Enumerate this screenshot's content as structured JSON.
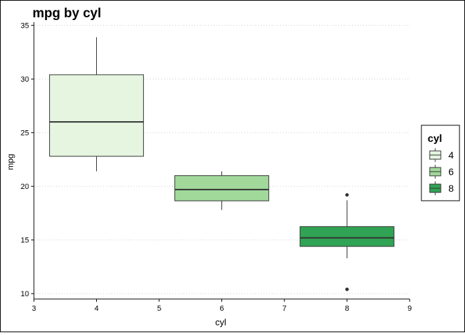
{
  "chart_data": {
    "type": "boxplot",
    "title": "mpg by cyl",
    "xlabel": "cyl",
    "ylabel": "mpg",
    "xlim": [
      3,
      9
    ],
    "ylim": [
      9.5,
      35.3
    ],
    "x_ticks": [
      3,
      4,
      5,
      6,
      7,
      8,
      9
    ],
    "y_ticks": [
      10,
      15,
      20,
      25,
      30,
      35
    ],
    "grid": "horizontal dotted at y ticks",
    "legend": {
      "title": "cyl",
      "position": "right",
      "entries": [
        "4",
        "6",
        "8"
      ]
    },
    "boxes": [
      {
        "group": "4",
        "x": 4,
        "min": 21.4,
        "q1": 22.8,
        "median": 26.0,
        "q3": 30.4,
        "max": 33.9,
        "outliers": [],
        "color": "#e5f5e0"
      },
      {
        "group": "6",
        "x": 6,
        "min": 17.8,
        "q1": 18.65,
        "median": 19.7,
        "q3": 21.0,
        "max": 21.4,
        "outliers": [],
        "color": "#a1d99b"
      },
      {
        "group": "8",
        "x": 8,
        "min": 13.3,
        "q1": 14.4,
        "median": 15.2,
        "q3": 16.25,
        "max": 18.7,
        "outliers": [
          10.4,
          19.2
        ],
        "color": "#31a354"
      }
    ]
  }
}
